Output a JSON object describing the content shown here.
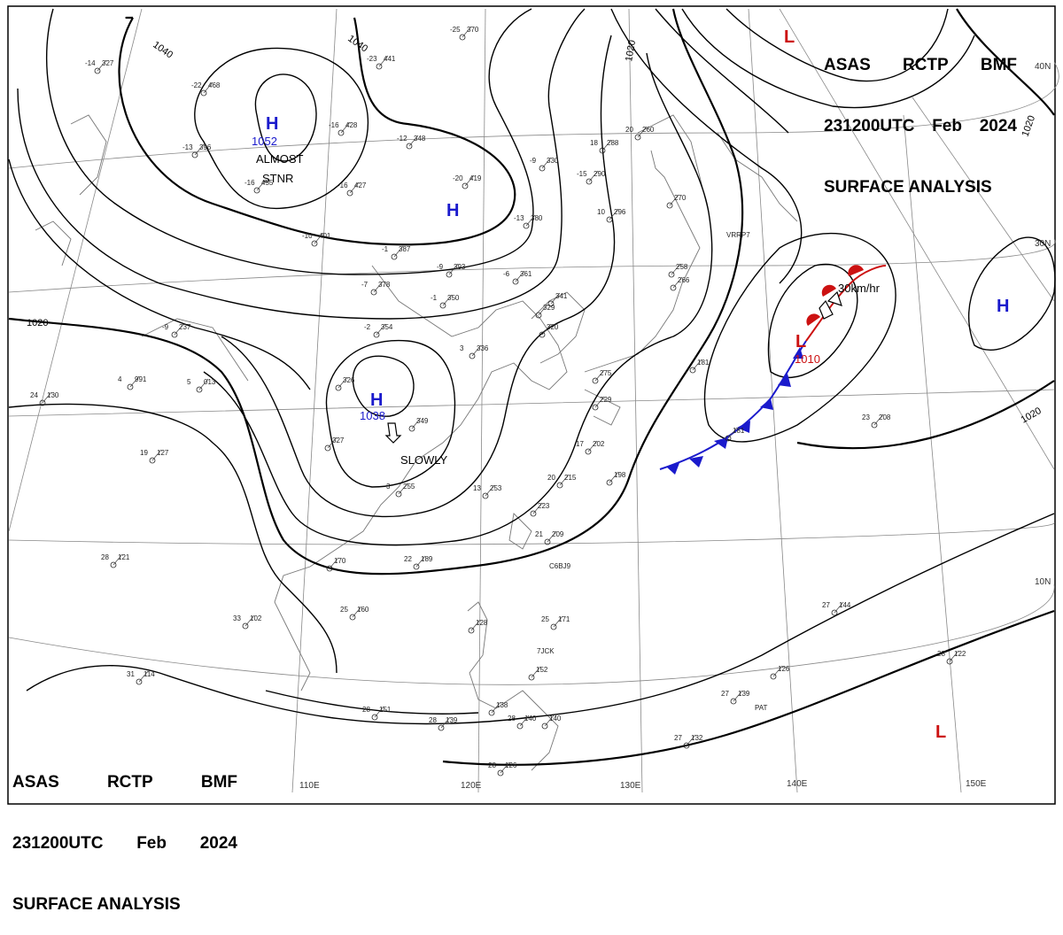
{
  "header": {
    "org": "ASAS",
    "center": "RCTP",
    "service": "BMF",
    "time": "231200UTC",
    "month": "Feb",
    "year": "2024",
    "title": "SURFACE ANALYSIS"
  },
  "longitude_labels": [
    "110E",
    "120E",
    "130E",
    "140E",
    "150E"
  ],
  "latitude_labels": [
    "40N",
    "30N",
    "10N"
  ],
  "isobar_labels": [
    "1040",
    "1040",
    "1020",
    "1020",
    "1020",
    "1020"
  ],
  "pressure_centers": [
    {
      "type": "H",
      "value": "1052",
      "note": "ALMOST STNR",
      "color": "#1a1acc"
    },
    {
      "type": "H",
      "value": "",
      "note": "",
      "color": "#1a1acc"
    },
    {
      "type": "H",
      "value": "1038",
      "note": "SLOWLY",
      "color": "#1a1acc"
    },
    {
      "type": "H",
      "value": "",
      "note": "",
      "color": "#1a1acc"
    },
    {
      "type": "L",
      "value": "1010",
      "note": "30km/hr",
      "color": "#cc1111"
    },
    {
      "type": "L",
      "value": "",
      "note": "",
      "color": "#cc1111"
    },
    {
      "type": "L",
      "value": "",
      "note": "",
      "color": "#cc1111"
    }
  ],
  "almost_stnr": [
    "ALMOST",
    "STNR"
  ],
  "colors": {
    "high": "#1a1acc",
    "low": "#cc1111",
    "cold_front": "#1a1acc",
    "warm_front": "#cc1111"
  },
  "stations": [
    {
      "t": "-14",
      "p": "327"
    },
    {
      "t": "-22",
      "p": "468"
    },
    {
      "t": "-13",
      "p": "396"
    },
    {
      "t": "-16",
      "p": "455"
    },
    {
      "t": "-16",
      "p": "428"
    },
    {
      "t": "-23",
      "p": "441"
    },
    {
      "t": "-12",
      "p": "348"
    },
    {
      "t": "-25",
      "p": "370"
    },
    {
      "t": "-20",
      "p": "419"
    },
    {
      "t": "-16",
      "p": "427"
    },
    {
      "t": "-9",
      "p": "330"
    },
    {
      "t": "-15",
      "p": "290"
    },
    {
      "t": "-13",
      "p": "380"
    },
    {
      "t": "-10",
      "p": "401"
    },
    {
      "t": "-1",
      "p": "387"
    },
    {
      "t": "-9",
      "p": "393"
    },
    {
      "t": "-6",
      "p": "361"
    },
    {
      "t": "-7",
      "p": "378"
    },
    {
      "t": "-2",
      "p": "354"
    },
    {
      "t": "-1",
      "p": "350"
    },
    {
      "t": "3",
      "p": "336"
    },
    {
      "t": "-9",
      "p": "237"
    },
    {
      "t": "18",
      "p": "288"
    },
    {
      "t": "20",
      "p": "260"
    },
    {
      "t": "10",
      "p": "296"
    },
    {
      "t": "",
      "p": "270"
    },
    {
      "t": "24",
      "p": "130"
    },
    {
      "t": "4",
      "p": "991"
    },
    {
      "t": "5",
      "p": "013"
    },
    {
      "t": "19",
      "p": "127"
    },
    {
      "t": "28",
      "p": "121"
    },
    {
      "t": "33",
      "p": "102"
    },
    {
      "t": "31",
      "p": "114"
    },
    {
      "t": "28",
      "p": "151"
    },
    {
      "t": "28",
      "p": "139"
    },
    {
      "t": "28",
      "p": "126"
    },
    {
      "t": "22",
      "p": "189"
    },
    {
      "t": "25",
      "p": "160"
    },
    {
      "t": "",
      "p": "170"
    },
    {
      "t": "13",
      "p": "253"
    },
    {
      "t": "",
      "p": "223"
    },
    {
      "t": "21",
      "p": "209"
    },
    {
      "t": "25",
      "p": "171"
    },
    {
      "t": "20",
      "p": "215"
    },
    {
      "t": "17",
      "p": "202"
    },
    {
      "t": "",
      "p": "198"
    },
    {
      "t": "",
      "p": "181"
    },
    {
      "t": "",
      "p": "181"
    },
    {
      "t": "23",
      "p": "208"
    },
    {
      "t": "27",
      "p": "144"
    },
    {
      "t": "28",
      "p": "122"
    },
    {
      "t": "",
      "p": "126"
    },
    {
      "t": "27",
      "p": "139"
    },
    {
      "t": "27",
      "p": "132"
    },
    {
      "t": "",
      "p": "152"
    },
    {
      "t": "",
      "p": "140"
    },
    {
      "t": "",
      "p": "138"
    },
    {
      "t": "",
      "p": "128"
    },
    {
      "t": "28",
      "p": "140"
    },
    {
      "t": "",
      "p": "327"
    },
    {
      "t": "",
      "p": "349"
    },
    {
      "t": "3",
      "p": "255"
    },
    {
      "t": "",
      "p": "326"
    },
    {
      "t": "",
      "p": "341"
    },
    {
      "t": "",
      "p": "329"
    },
    {
      "t": "",
      "p": "320"
    },
    {
      "t": "",
      "p": "275"
    },
    {
      "t": "",
      "p": "229"
    },
    {
      "t": "",
      "p": "258"
    },
    {
      "t": "",
      "p": "266"
    }
  ],
  "ship_labels": [
    "VRRP7",
    "C6BJ9",
    "7JCK",
    "PAT"
  ]
}
